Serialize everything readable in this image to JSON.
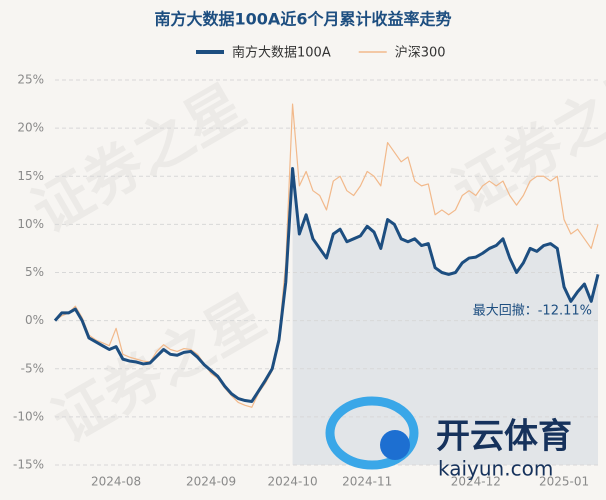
{
  "chart_data": {
    "type": "line",
    "title": "南方大数据100A近6个月累计收益率走势",
    "categories": [
      null,
      null,
      null,
      null,
      null,
      null,
      null,
      null,
      null,
      "2024-08",
      null,
      null,
      null,
      null,
      null,
      null,
      null,
      null,
      null,
      null,
      null,
      null,
      null,
      "2024-09",
      null,
      null,
      null,
      null,
      null,
      null,
      null,
      null,
      null,
      null,
      null,
      "2024-10",
      null,
      null,
      null,
      null,
      null,
      null,
      null,
      null,
      null,
      null,
      "2024-11",
      null,
      null,
      null,
      null,
      null,
      null,
      null,
      null,
      null,
      null,
      null,
      null,
      null,
      null,
      null,
      "2024-12",
      null,
      null,
      null,
      null,
      null,
      null,
      null,
      null,
      null,
      null,
      null,
      null,
      "2025-01",
      null,
      null,
      null,
      null,
      null
    ],
    "series": [
      {
        "name": "南方大数据100A",
        "color": "#1d4e80",
        "values": [
          0,
          0.8,
          0.8,
          1.2,
          0,
          -1.8,
          -2.2,
          -2.6,
          -3.0,
          -2.7,
          -4.0,
          -4.2,
          -4.3,
          -4.5,
          -4.4,
          -3.7,
          -3.0,
          -3.5,
          -3.6,
          -3.3,
          -3.2,
          -3.8,
          -4.6,
          -5.2,
          -5.8,
          -6.8,
          -7.6,
          -8.1,
          -8.3,
          -8.4,
          -7.3,
          -6.2,
          -5.0,
          -2.0,
          4.0,
          15.8,
          9.0,
          11.0,
          8.5,
          7.5,
          6.5,
          9.0,
          9.5,
          8.2,
          8.5,
          8.8,
          9.8,
          9.2,
          7.5,
          10.5,
          10.0,
          8.5,
          8.2,
          8.5,
          7.8,
          8.0,
          5.5,
          5.0,
          4.8,
          5.0,
          6.0,
          6.5,
          6.6,
          7.0,
          7.5,
          7.8,
          8.5,
          6.5,
          5.0,
          6.0,
          7.5,
          7.2,
          7.8,
          8.0,
          7.5,
          3.5,
          2.0,
          3.0,
          3.8,
          2.0,
          4.8
        ]
      },
      {
        "name": "沪深300",
        "color": "#f2b98b",
        "values": [
          0,
          0.5,
          0.8,
          1.5,
          0.3,
          -1.5,
          -2.0,
          -2.3,
          -2.6,
          -0.8,
          -3.5,
          -3.8,
          -4.0,
          -4.2,
          -4.3,
          -3.2,
          -2.5,
          -3.0,
          -3.2,
          -2.9,
          -3.0,
          -3.5,
          -4.5,
          -5.5,
          -6.0,
          -7.0,
          -7.8,
          -8.5,
          -8.8,
          -9.0,
          -7.5,
          -6.5,
          -5.2,
          -1.5,
          6.0,
          22.5,
          14.0,
          15.5,
          13.5,
          13.0,
          11.5,
          14.5,
          15.0,
          13.5,
          13.0,
          14.0,
          15.5,
          15.0,
          14.0,
          18.5,
          17.5,
          16.5,
          17.0,
          14.5,
          14.0,
          14.2,
          11.0,
          11.5,
          11.0,
          11.5,
          13.0,
          13.5,
          13.0,
          14.0,
          14.5,
          14.0,
          14.5,
          13.0,
          12.0,
          13.0,
          14.5,
          15.0,
          15.0,
          14.5,
          15.0,
          10.5,
          9.0,
          9.5,
          8.5,
          7.5,
          10.0
        ]
      }
    ],
    "ylim": [
      -15,
      25
    ],
    "yticks": [
      {
        "value": -15,
        "label": "-15%"
      },
      {
        "value": -10,
        "label": "-10%"
      },
      {
        "value": -5,
        "label": "-5%"
      },
      {
        "value": 0,
        "label": "0%"
      },
      {
        "value": 5,
        "label": "5%"
      },
      {
        "value": 10,
        "label": "10%"
      },
      {
        "value": 15,
        "label": "15%"
      },
      {
        "value": 20,
        "label": "20%"
      },
      {
        "value": 25,
        "label": "25%"
      }
    ],
    "grid": true,
    "legend": "top",
    "annotations": [
      "最大回撤：-12.11%"
    ],
    "watermarks": [
      "证券之星",
      "开云体育",
      "kaiyun.com"
    ]
  }
}
